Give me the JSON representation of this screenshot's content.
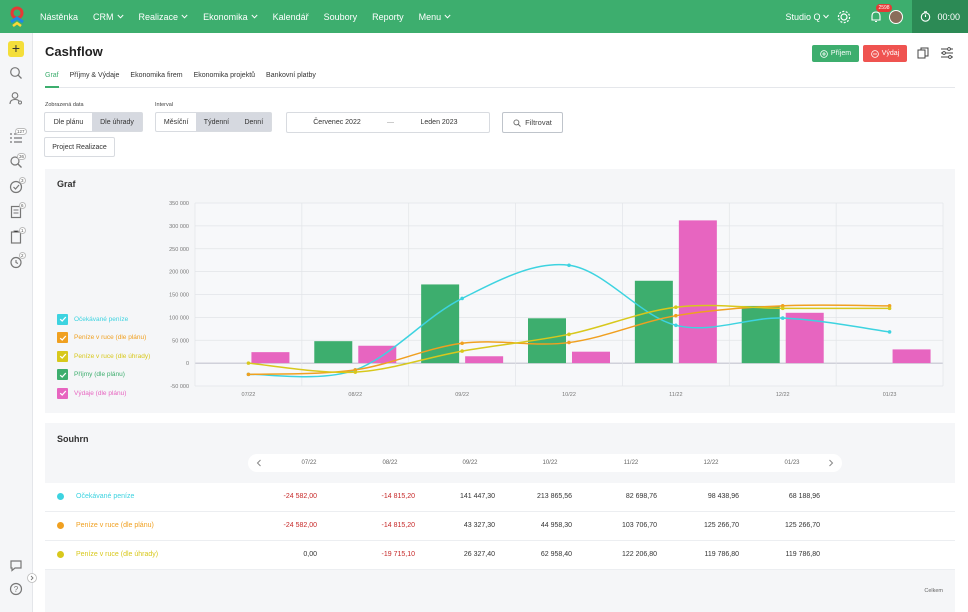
{
  "nav": {
    "items": [
      {
        "label": "Nástěnka",
        "dropdown": false
      },
      {
        "label": "CRM",
        "dropdown": true
      },
      {
        "label": "Realizace",
        "dropdown": true
      },
      {
        "label": "Ekonomika",
        "dropdown": true
      },
      {
        "label": "Kalendář",
        "dropdown": false
      },
      {
        "label": "Soubory",
        "dropdown": false
      },
      {
        "label": "Reporty",
        "dropdown": false
      },
      {
        "label": "Menu",
        "dropdown": true
      }
    ],
    "studio": "Studio Q",
    "notif_badge": "2598",
    "timer": "00:00"
  },
  "sidebar": {
    "badges": [
      "127",
      "36",
      "3",
      "6",
      "1",
      "2"
    ]
  },
  "page": {
    "title": "Cashflow",
    "btn_prijem": "Příjem",
    "btn_vydaj": "Výdaj"
  },
  "tabs": [
    "Graf",
    "Příjmy & Výdaje",
    "Ekonomika firem",
    "Ekonomika projektů",
    "Bankovní platby"
  ],
  "filters": {
    "zobrazena_label": "Zobrazená data",
    "zobrazena_options": [
      "Dle plánu",
      "Dle úhrady"
    ],
    "interval_label": "Interval",
    "interval_options": [
      "Měsíční",
      "Týdenní",
      "Denní"
    ],
    "date_from": "Červenec 2022",
    "date_sep": "—",
    "date_to": "Leden 2023",
    "filter_btn": "Filtrovat",
    "project_btn": "Project Realizace"
  },
  "graph_card": {
    "title": "Graf"
  },
  "colors": {
    "green": "#3dae6e",
    "pink": "#e765c0",
    "cyan": "#3dd3e0",
    "orange": "#f0a020",
    "yellow": "#d8c81c",
    "red": "#ef5350"
  },
  "chart_data": {
    "type": "bar",
    "categories": [
      "07/22",
      "08/22",
      "09/22",
      "10/22",
      "11/22",
      "12/22",
      "01/23"
    ],
    "ylim": [
      -50000,
      350000
    ],
    "yticks": [
      "-50 000",
      "0",
      "50 000",
      "100 000",
      "150 000",
      "200 000",
      "250 000",
      "300 000",
      "350 000"
    ],
    "ytick_values": [
      -50000,
      0,
      50000,
      100000,
      150000,
      200000,
      250000,
      300000,
      350000
    ],
    "grid": true,
    "legend_position": "left",
    "series": [
      {
        "name": "Očekávané peníze",
        "kind": "line",
        "color": "#3dd3e0",
        "values": [
          -24582,
          -14815,
          141447,
          213865,
          82698,
          98438,
          68188
        ]
      },
      {
        "name": "Peníze v ruce (dle plánu)",
        "kind": "line",
        "color": "#f0a020",
        "values": [
          -24582,
          -14815,
          43327,
          44958,
          103706,
          125266,
          125266
        ]
      },
      {
        "name": "Peníze v ruce (dle úhrady)",
        "kind": "line",
        "color": "#d8c81c",
        "values": [
          0,
          -19715,
          26327,
          62958,
          122206,
          119786,
          119786
        ]
      },
      {
        "name": "Příjmy (dle plánu)",
        "kind": "bar",
        "color": "#3dae6e",
        "values": [
          null,
          48000,
          172000,
          98000,
          180000,
          125000,
          null
        ]
      },
      {
        "name": "Výdaje (dle plánu)",
        "kind": "bar",
        "color": "#e765c0",
        "values": [
          24000,
          38000,
          15000,
          25000,
          312000,
          110000,
          30000
        ]
      }
    ]
  },
  "summary": {
    "title": "Souhrn",
    "columns": [
      "07/22",
      "08/22",
      "09/22",
      "10/22",
      "11/22",
      "12/22",
      "01/23"
    ],
    "rows": [
      {
        "name": "Očekávané peníze",
        "color": "#3dd3e0",
        "values": [
          "-24 582,00",
          "-14 815,20",
          "141 447,30",
          "213 865,56",
          "82 698,76",
          "98 438,96",
          "68 188,96"
        ]
      },
      {
        "name": "Peníze v ruce (dle plánu)",
        "color": "#f0a020",
        "values": [
          "-24 582,00",
          "-14 815,20",
          "43 327,30",
          "44 958,30",
          "103 706,70",
          "125 266,70",
          "125 266,70"
        ]
      },
      {
        "name": "Peníze v ruce (dle úhrady)",
        "color": "#d8c81c",
        "values": [
          "0,00",
          "-19 715,10",
          "26 327,40",
          "62 958,40",
          "122 206,80",
          "119 786,80",
          "119 786,80"
        ]
      }
    ],
    "celkem": "Celkem"
  }
}
